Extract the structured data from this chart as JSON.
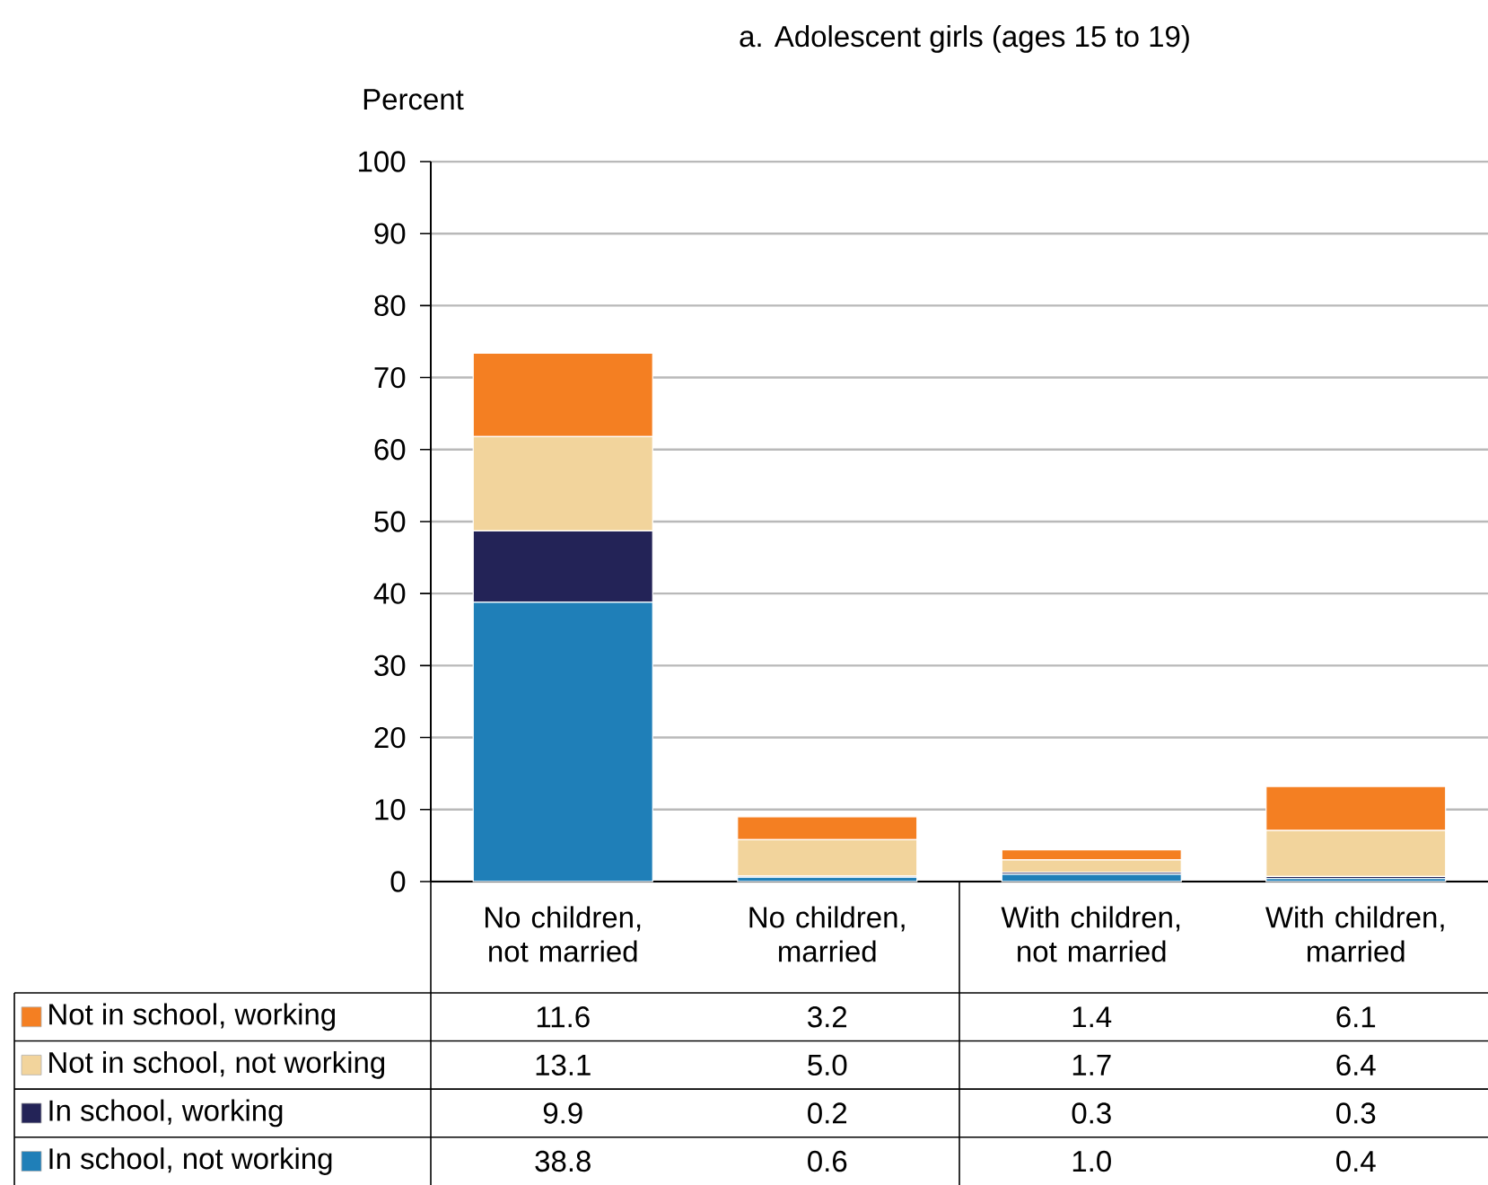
{
  "chart_data": {
    "type": "bar",
    "title": "a. Adolescent girls (ages 15 to 19)",
    "ylabel": "Percent",
    "stacked": true,
    "grid": "y",
    "legend": "bottom left",
    "categories": [
      "No children, not married",
      "No children, married",
      "With children, not married",
      "With children, married"
    ],
    "ylim": [
      0,
      100
    ],
    "yticks": [
      0,
      10,
      20,
      30,
      40,
      50,
      60,
      70,
      80,
      90,
      100
    ],
    "series": [
      {
        "name": "In school, not working",
        "color": "#1f7fb8",
        "values": [
          38.8,
          0.6,
          1.0,
          0.4
        ],
        "value_labels": [
          "38.8",
          "0.6",
          "1.0",
          "0.4"
        ]
      },
      {
        "name": "In school, working",
        "color": "#232357",
        "values": [
          9.9,
          0.2,
          0.3,
          0.3
        ],
        "value_labels": [
          "9.9",
          "0.2",
          "0.3",
          "0.3"
        ]
      },
      {
        "name": "Not in school, not working",
        "color": "#f2d49c",
        "values": [
          13.1,
          5.0,
          1.7,
          6.4
        ],
        "value_labels": [
          "13.1",
          "5.0",
          "1.7",
          "6.4"
        ]
      },
      {
        "name": "Not in school, working",
        "color": "#f47f22",
        "values": [
          11.6,
          3.2,
          1.4,
          6.1
        ],
        "value_labels": [
          "11.6",
          "3.2",
          "1.4",
          "6.1"
        ]
      }
    ]
  }
}
